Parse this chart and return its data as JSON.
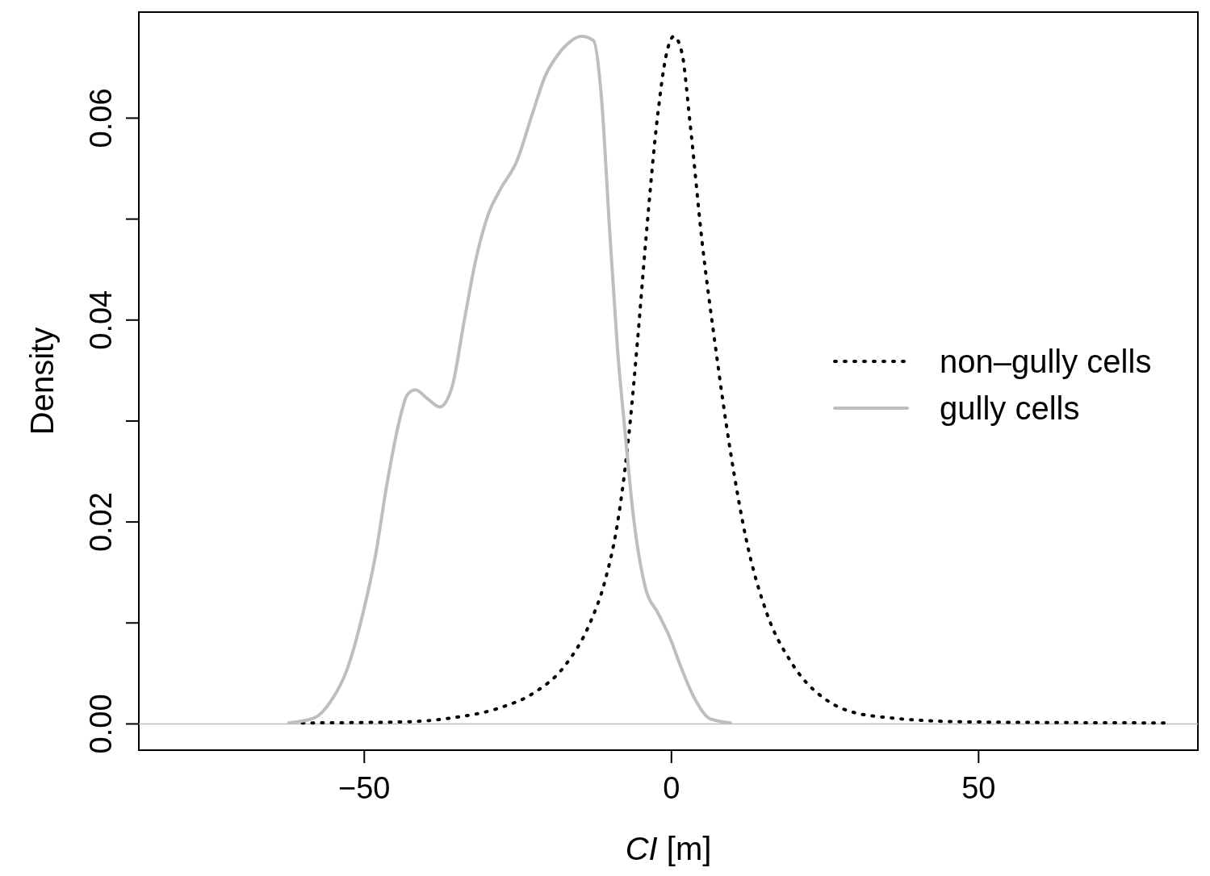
{
  "chart_data": {
    "type": "line",
    "xlabel": "CI [m]",
    "ylabel": "Density",
    "xlim": [
      -86.7,
      85.7
    ],
    "ylim": [
      -0.0026,
      0.0705
    ],
    "xticks": [
      -50,
      0,
      50
    ],
    "yticks": [
      {
        "value": 0,
        "label": "0.00"
      },
      {
        "value": 0.01,
        "label": null
      },
      {
        "value": 0.02,
        "label": "0.02"
      },
      {
        "value": 0.03,
        "label": null
      },
      {
        "value": 0.04,
        "label": "0.04"
      },
      {
        "value": 0.05,
        "label": null
      },
      {
        "value": 0.06,
        "label": "0.06"
      }
    ],
    "grid": false,
    "legend": "right",
    "ref_lines": [
      {
        "axis": "y",
        "value": 0,
        "label": null,
        "color": "#bebebe"
      }
    ],
    "series": [
      {
        "name": "non–gully cells",
        "color": "#000000",
        "line_style": "dotted",
        "x": [
          -60.1,
          -43.6,
          -35.7,
          -27.9,
          -22.6,
          -17.3,
          -13.4,
          -10.8,
          -8.8,
          -6.8,
          -5.5,
          -4.2,
          -2.2,
          -0.9,
          0.4,
          1.7,
          3.0,
          5.0,
          7.0,
          9.6,
          12.2,
          15.5,
          19.4,
          24.7,
          32.6,
          48.4,
          80.5
        ],
        "values": [
          0.0001,
          0.0002,
          0.0006,
          0.0016,
          0.003,
          0.0058,
          0.0098,
          0.0142,
          0.0198,
          0.0294,
          0.0381,
          0.0477,
          0.0605,
          0.0661,
          0.0681,
          0.0665,
          0.0597,
          0.0477,
          0.0381,
          0.027,
          0.0182,
          0.011,
          0.0062,
          0.0026,
          0.0008,
          0.0002,
          0.0001
        ]
      },
      {
        "name": "gully cells",
        "color": "#bebebe",
        "line_style": "solid",
        "x": [
          -62.3,
          -58.1,
          -55.5,
          -52.8,
          -50.2,
          -48.2,
          -46.3,
          -44.3,
          -43.0,
          -41.7,
          -39.7,
          -37.7,
          -35.7,
          -33.8,
          -31.8,
          -29.8,
          -27.9,
          -25.2,
          -22.6,
          -20.6,
          -18.7,
          -17.0,
          -14.7,
          -12.7,
          -11.4,
          -10.1,
          -8.8,
          -7.5,
          -6.2,
          -4.2,
          -2.2,
          -0.3,
          1.7,
          3.7,
          6.3,
          9.6
        ],
        "values": [
          0.0001,
          0.0006,
          0.0022,
          0.0054,
          0.011,
          0.0166,
          0.0238,
          0.03,
          0.0326,
          0.0331,
          0.0322,
          0.0314,
          0.0334,
          0.0397,
          0.0461,
          0.0505,
          0.0529,
          0.0557,
          0.0605,
          0.0641,
          0.0661,
          0.0673,
          0.0681,
          0.0677,
          0.0621,
          0.0493,
          0.0373,
          0.0286,
          0.0206,
          0.0134,
          0.011,
          0.0086,
          0.0054,
          0.0026,
          0.0005,
          0.0001
        ]
      }
    ]
  }
}
